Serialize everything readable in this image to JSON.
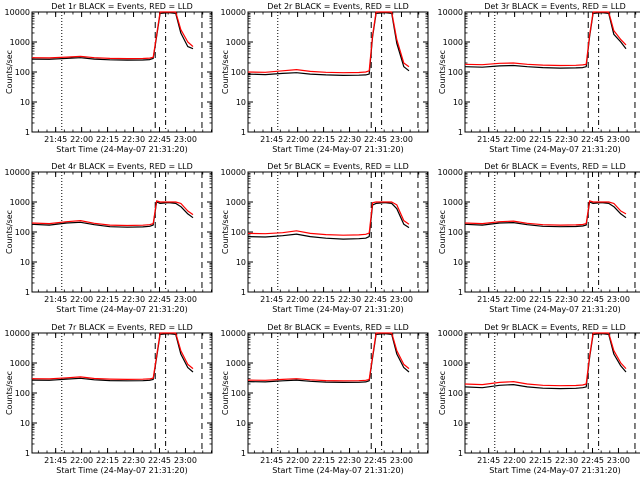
{
  "common": {
    "xlabel": "Start Time (24-May-07 21:31:20)",
    "ylabel": "Counts/sec",
    "x_tick_labels": [
      "21:45",
      "22:00",
      "22:15",
      "22:30",
      "22:45",
      "23:00"
    ],
    "x_tick_minutes": [
      13.67,
      28.67,
      43.67,
      58.67,
      73.67,
      88.67
    ],
    "x_range_minutes": [
      0,
      104
    ],
    "y_range": [
      1,
      10000
    ],
    "y_scale": "log",
    "y_tick_labels": [
      "1",
      "10",
      "100",
      "1000",
      "10000"
    ],
    "y_tick_values": [
      1,
      10,
      100,
      1000,
      10000
    ],
    "marker_lines": [
      {
        "style": "dotted",
        "minute": 17.2
      },
      {
        "style": "dashed",
        "minute": 71.2
      },
      {
        "style": "dashdot",
        "minute": 77.2
      },
      {
        "style": "dashed",
        "minute": 98.2
      }
    ],
    "colors": {
      "events": "#000000",
      "lld": "#ff0000",
      "axes": "#000000"
    }
  },
  "chart_data": [
    {
      "type": "line",
      "title": "Det 1r BLACK = Events, RED = LLD",
      "x_minutes": [
        0,
        10,
        20,
        28,
        36,
        45,
        55,
        64,
        68,
        70,
        72,
        74,
        79,
        83,
        86,
        90,
        93
      ],
      "series": [
        {
          "values": [
            270,
            265,
            285,
            300,
            270,
            255,
            250,
            252,
            260,
            285,
            1500,
            9000,
            9500,
            9000,
            2000,
            700,
            600
          ]
        },
        {
          "values": [
            300,
            295,
            315,
            330,
            300,
            285,
            280,
            282,
            290,
            310,
            1700,
            10000,
            10000,
            10000,
            2600,
            1000,
            700
          ]
        }
      ]
    },
    {
      "type": "line",
      "title": "Det 2r BLACK = Events, RED = LLD",
      "x_minutes": [
        0,
        10,
        20,
        28,
        36,
        45,
        55,
        64,
        68,
        70,
        72,
        74,
        79,
        83,
        86,
        90,
        93
      ],
      "series": [
        {
          "values": [
            85,
            82,
            90,
            95,
            85,
            80,
            77,
            78,
            80,
            85,
            1500,
            9000,
            9500,
            9000,
            900,
            150,
            110
          ]
        },
        {
          "values": [
            100,
            98,
            110,
            120,
            105,
            98,
            95,
            96,
            100,
            110,
            1700,
            10000,
            10000,
            10000,
            1200,
            200,
            150
          ]
        }
      ]
    },
    {
      "type": "line",
      "title": "Det 3r BLACK = Events, RED = LLD",
      "x_minutes": [
        0,
        10,
        20,
        28,
        36,
        45,
        55,
        64,
        68,
        70,
        72,
        74,
        79,
        83,
        86,
        90,
        93
      ],
      "series": [
        {
          "values": [
            150,
            145,
            160,
            165,
            150,
            140,
            135,
            137,
            140,
            150,
            1500,
            9000,
            9500,
            9000,
            1800,
            1000,
            600
          ]
        },
        {
          "values": [
            180,
            175,
            195,
            200,
            180,
            170,
            165,
            167,
            172,
            180,
            1700,
            10000,
            10000,
            10000,
            2400,
            1200,
            800
          ]
        }
      ]
    },
    {
      "type": "line",
      "title": "Det 4r BLACK = Events, RED = LLD",
      "x_minutes": [
        0,
        10,
        20,
        28,
        36,
        45,
        55,
        64,
        68,
        70,
        72,
        74,
        79,
        83,
        86,
        90,
        93
      ],
      "series": [
        {
          "values": [
            180,
            170,
            200,
            210,
            175,
            150,
            145,
            148,
            155,
            170,
            1000,
            900,
            950,
            900,
            700,
            400,
            300
          ]
        },
        {
          "values": [
            200,
            190,
            220,
            240,
            195,
            170,
            165,
            168,
            175,
            190,
            1100,
            1000,
            1000,
            1000,
            900,
            500,
            380
          ]
        }
      ]
    },
    {
      "type": "line",
      "title": "Det 5r BLACK = Events, RED = LLD",
      "x_minutes": [
        0,
        10,
        20,
        28,
        36,
        45,
        55,
        64,
        68,
        70,
        72,
        74,
        79,
        83,
        86,
        90,
        93
      ],
      "series": [
        {
          "values": [
            70,
            68,
            75,
            85,
            70,
            62,
            58,
            60,
            62,
            70,
            800,
            900,
            950,
            900,
            600,
            180,
            140
          ]
        },
        {
          "values": [
            90,
            88,
            95,
            110,
            90,
            82,
            78,
            80,
            84,
            92,
            950,
            1000,
            1000,
            1000,
            800,
            240,
            180
          ]
        }
      ]
    },
    {
      "type": "line",
      "title": "Det 6r BLACK = Events, RED = LLD",
      "x_minutes": [
        0,
        10,
        20,
        28,
        36,
        45,
        55,
        64,
        68,
        70,
        72,
        74,
        79,
        83,
        86,
        90,
        93
      ],
      "series": [
        {
          "values": [
            180,
            170,
            200,
            205,
            175,
            155,
            150,
            152,
            158,
            170,
            1000,
            900,
            950,
            900,
            700,
            400,
            300
          ]
        },
        {
          "values": [
            200,
            190,
            220,
            230,
            195,
            175,
            170,
            172,
            178,
            190,
            1100,
            1000,
            1000,
            1000,
            900,
            500,
            400
          ]
        }
      ]
    },
    {
      "type": "line",
      "title": "Det 7r BLACK = Events, RED = LLD",
      "x_minutes": [
        0,
        10,
        20,
        28,
        36,
        45,
        55,
        64,
        68,
        70,
        72,
        74,
        79,
        83,
        86,
        90,
        93
      ],
      "series": [
        {
          "values": [
            270,
            265,
            290,
            310,
            275,
            260,
            255,
            258,
            265,
            285,
            1500,
            9000,
            9500,
            9000,
            2000,
            700,
            500
          ]
        },
        {
          "values": [
            300,
            295,
            320,
            345,
            305,
            290,
            285,
            288,
            295,
            315,
            1700,
            10000,
            10000,
            10000,
            2600,
            900,
            650
          ]
        }
      ]
    },
    {
      "type": "line",
      "title": "Det 8r BLACK = Events, RED = LLD",
      "x_minutes": [
        0,
        10,
        20,
        28,
        36,
        45,
        55,
        64,
        68,
        70,
        72,
        74,
        79,
        83,
        86,
        90,
        93
      ],
      "series": [
        {
          "values": [
            240,
            235,
            255,
            270,
            245,
            230,
            225,
            228,
            235,
            255,
            1500,
            9000,
            9500,
            9000,
            2000,
            700,
            500
          ]
        },
        {
          "values": [
            270,
            265,
            285,
            300,
            275,
            260,
            255,
            258,
            265,
            285,
            1700,
            10000,
            10000,
            10000,
            2600,
            900,
            650
          ]
        }
      ]
    },
    {
      "type": "line",
      "title": "Det 9r BLACK = Events, RED = LLD",
      "x_minutes": [
        0,
        10,
        20,
        28,
        36,
        45,
        55,
        64,
        68,
        70,
        72,
        74,
        79,
        83,
        86,
        90,
        93
      ],
      "series": [
        {
          "values": [
            160,
            150,
            180,
            190,
            160,
            145,
            140,
            143,
            150,
            160,
            1500,
            9000,
            9500,
            9000,
            2000,
            800,
            500
          ]
        },
        {
          "values": [
            200,
            190,
            225,
            240,
            200,
            180,
            175,
            178,
            185,
            200,
            1700,
            10000,
            10000,
            10000,
            2600,
            1000,
            650
          ]
        }
      ]
    }
  ]
}
